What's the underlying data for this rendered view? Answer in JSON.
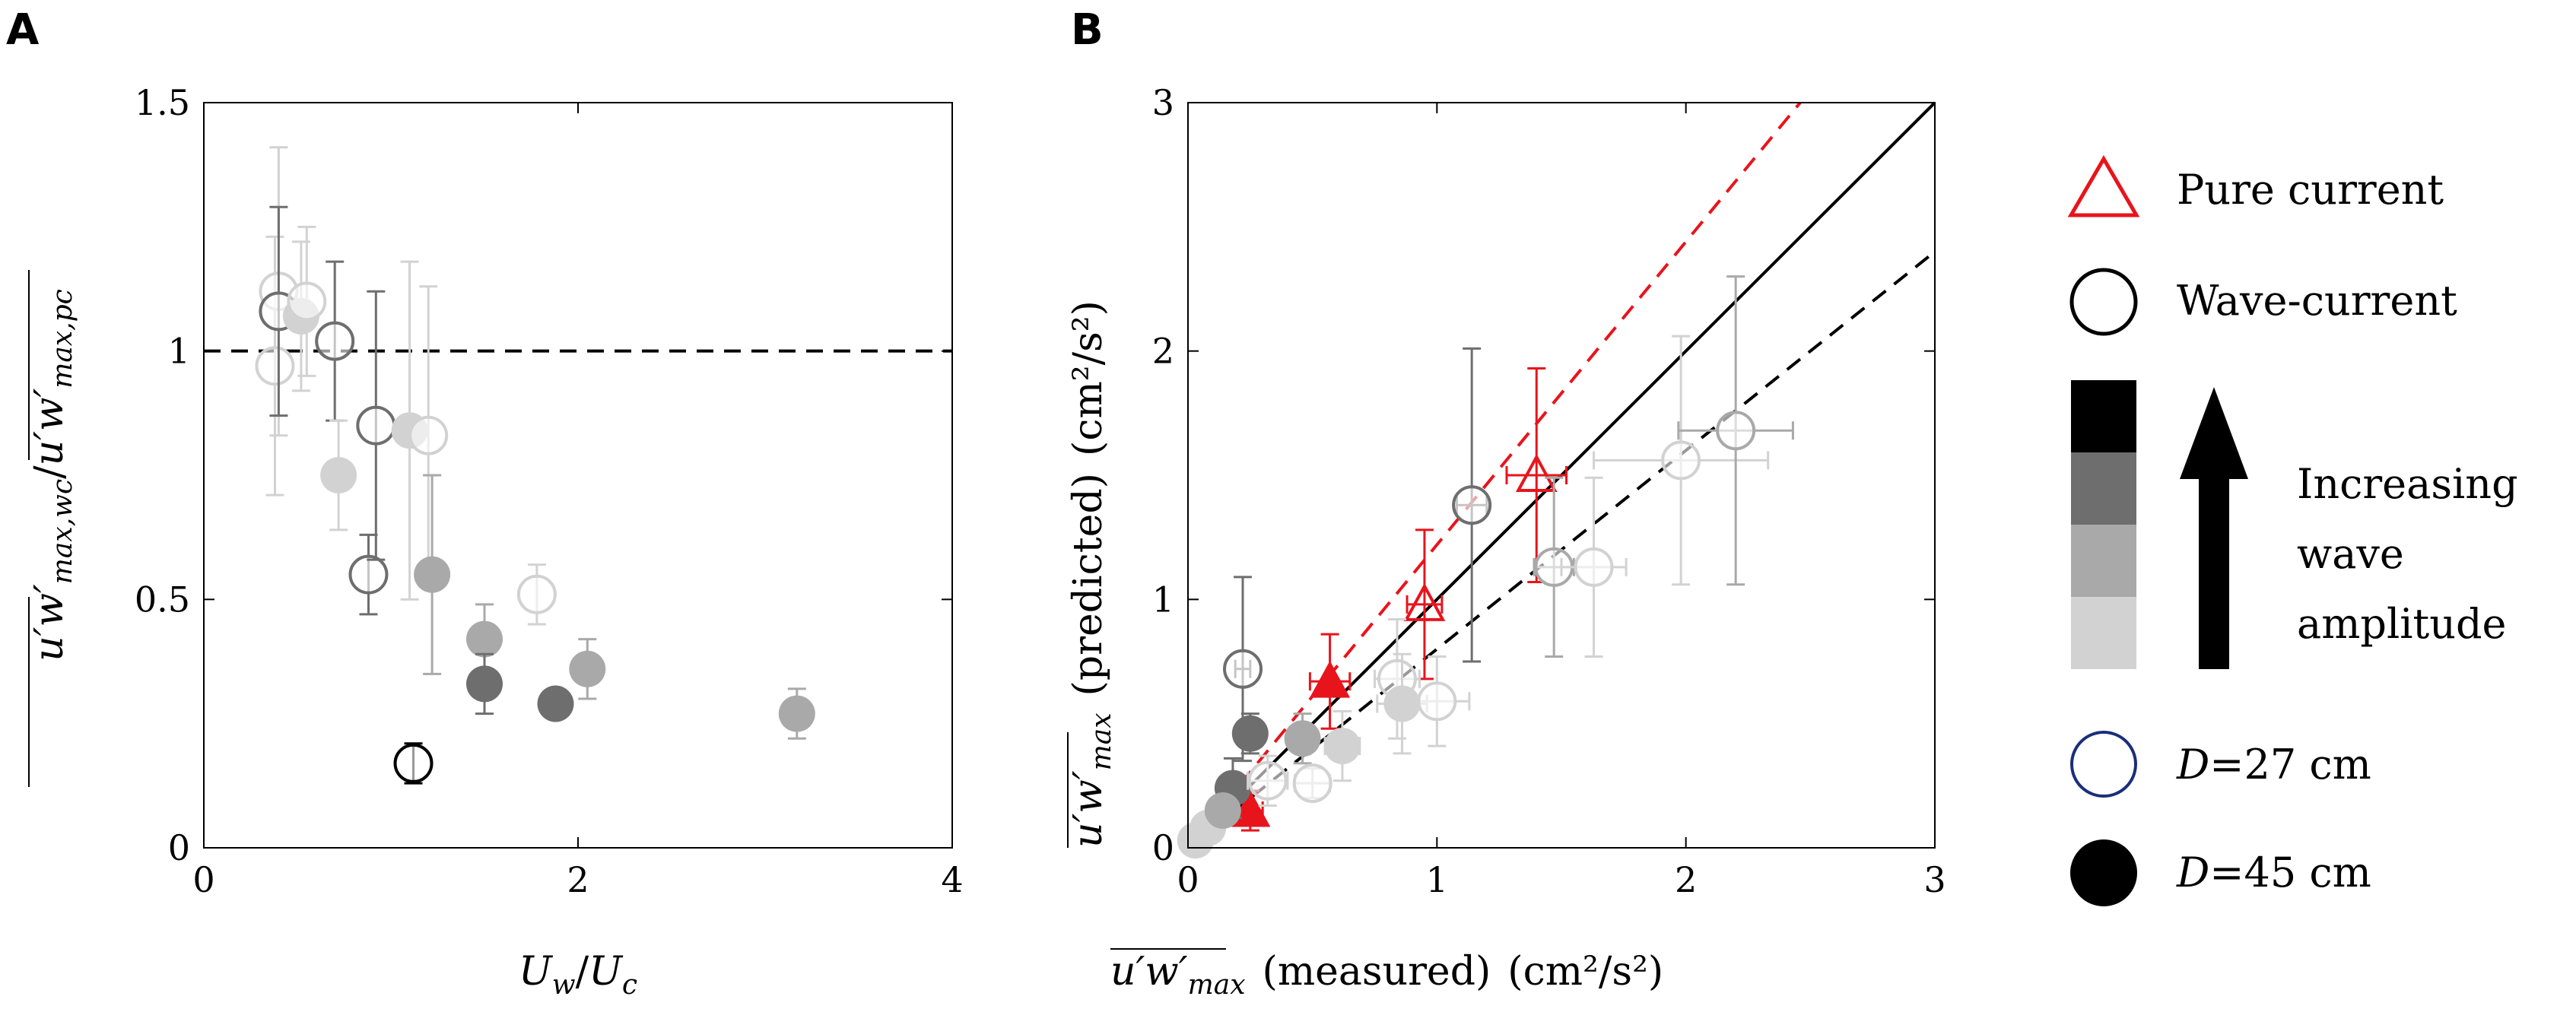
{
  "colors": {
    "pure_current": "#e8141c",
    "black": "#000000",
    "dark": "#6e6e6e",
    "medium": "#a9a9a9",
    "light": "#d2d2d2",
    "legend_blue": "#1a2f7a",
    "refline_dash_red": "#e8141c"
  },
  "chart_data": [
    {
      "panel": "A",
      "type": "scatter",
      "xlabel": "U_w/U_c",
      "xlabel_parts": {
        "a": "U",
        "a_sub": "w",
        "slash": "/",
        "b": "U",
        "b_sub": "c"
      },
      "ylabel": "u'w'_max,wc / u'w'_max,pc",
      "ylabel_parts": {
        "num": "u′w′",
        "num_sub": "max,wc",
        "slash": "/",
        "den": "u′w′",
        "den_sub": "max,pc"
      },
      "xlim": [
        0,
        4
      ],
      "ylim": [
        0,
        1.5
      ],
      "xticks": [
        0,
        2,
        4
      ],
      "xtick_labels": [
        "0",
        "2",
        "4"
      ],
      "yticks": [
        0,
        0.5,
        1,
        1.5
      ],
      "ytick_labels": [
        "0",
        "0.5",
        "1",
        "1.5"
      ],
      "reference_line": {
        "y": 1,
        "style": "dashed"
      },
      "points": [
        {
          "x": 0.38,
          "y": 0.97,
          "err": 0.26,
          "shade": "light",
          "fill": "open"
        },
        {
          "x": 0.4,
          "y": 1.12,
          "err": 0.29,
          "shade": "light",
          "fill": "open"
        },
        {
          "x": 0.4,
          "y": 1.08,
          "err": 0.21,
          "shade": "dark",
          "fill": "open"
        },
        {
          "x": 0.52,
          "y": 1.07,
          "err": 0.15,
          "shade": "light",
          "fill": "filled"
        },
        {
          "x": 0.55,
          "y": 1.1,
          "err": 0.15,
          "shade": "light",
          "fill": "open"
        },
        {
          "x": 0.7,
          "y": 1.02,
          "err": 0.16,
          "shade": "dark",
          "fill": "open"
        },
        {
          "x": 0.72,
          "y": 0.75,
          "err": 0.11,
          "shade": "light",
          "fill": "filled"
        },
        {
          "x": 0.88,
          "y": 0.55,
          "err": 0.08,
          "shade": "dark",
          "fill": "open"
        },
        {
          "x": 0.92,
          "y": 0.85,
          "err": 0.27,
          "shade": "dark",
          "fill": "open"
        },
        {
          "x": 1.1,
          "y": 0.84,
          "err": 0.34,
          "shade": "light",
          "fill": "filled"
        },
        {
          "x": 1.12,
          "y": 0.17,
          "err": 0.04,
          "shade": "black",
          "fill": "open"
        },
        {
          "x": 1.2,
          "y": 0.83,
          "err": 0.3,
          "shade": "light",
          "fill": "open"
        },
        {
          "x": 1.22,
          "y": 0.55,
          "err": 0.2,
          "shade": "medium",
          "fill": "filled"
        },
        {
          "x": 1.5,
          "y": 0.42,
          "err": 0.07,
          "shade": "medium",
          "fill": "filled"
        },
        {
          "x": 1.5,
          "y": 0.33,
          "err": 0.06,
          "shade": "dark",
          "fill": "filled"
        },
        {
          "x": 1.78,
          "y": 0.51,
          "err": 0.06,
          "shade": "light",
          "fill": "open"
        },
        {
          "x": 1.88,
          "y": 0.29,
          "err": 0.02,
          "shade": "dark",
          "fill": "filled"
        },
        {
          "x": 2.05,
          "y": 0.36,
          "err": 0.06,
          "shade": "medium",
          "fill": "filled"
        },
        {
          "x": 3.17,
          "y": 0.27,
          "err": 0.05,
          "shade": "medium",
          "fill": "filled"
        }
      ]
    },
    {
      "panel": "B",
      "type": "scatter",
      "xlabel": "u'w'_max (measured) (cm^2/s^2)",
      "xlabel_parts": {
        "sym": "u′w′",
        "sub": "max",
        "text": "(measured)",
        "unit": "(cm²/s²)"
      },
      "ylabel": "u'w'_max (predicted) (cm^2/s^2)",
      "ylabel_parts": {
        "sym": "u′w′",
        "sub": "max",
        "text": "(predicted)",
        "unit": "(cm²/s²)"
      },
      "xlim": [
        0,
        3
      ],
      "ylim": [
        0,
        3
      ],
      "xticks": [
        0,
        1,
        2,
        3
      ],
      "xtick_labels": [
        "0",
        "1",
        "2",
        "3"
      ],
      "yticks": [
        0,
        1,
        2,
        3
      ],
      "ytick_labels": [
        "0",
        "1",
        "2",
        "3"
      ],
      "reference_lines": [
        {
          "slope": 1.0,
          "color": "black",
          "style": "solid"
        },
        {
          "slope": 1.22,
          "color": "pure_current",
          "style": "dashed"
        },
        {
          "slope": 0.8,
          "color": "black",
          "style": "dashed"
        }
      ],
      "points": [
        {
          "x": 0.25,
          "y": 0.15,
          "xerr": 0.05,
          "yerr": 0.08,
          "shade": "red",
          "marker": "triangle",
          "fill": "filled"
        },
        {
          "x": 0.57,
          "y": 0.67,
          "xerr": 0.08,
          "yerr": 0.19,
          "shade": "red",
          "marker": "triangle",
          "fill": "filled"
        },
        {
          "x": 0.95,
          "y": 0.98,
          "xerr": 0.07,
          "yerr": 0.3,
          "shade": "red",
          "marker": "triangle",
          "fill": "open"
        },
        {
          "x": 1.4,
          "y": 1.5,
          "xerr": 0.12,
          "yerr": 0.43,
          "shade": "red",
          "marker": "triangle",
          "fill": "open"
        },
        {
          "x": 0.22,
          "y": 0.72,
          "xerr": 0.03,
          "yerr": 0.37,
          "shade": "dark",
          "marker": "circle",
          "fill": "open"
        },
        {
          "x": 0.25,
          "y": 0.46,
          "xerr": 0.05,
          "yerr": 0.08,
          "shade": "dark",
          "marker": "circle",
          "fill": "filled"
        },
        {
          "x": 0.18,
          "y": 0.24,
          "xerr": 0.06,
          "yerr": 0.12,
          "shade": "dark",
          "marker": "circle",
          "fill": "filled"
        },
        {
          "x": 0.08,
          "y": 0.08,
          "xerr": 0.04,
          "yerr": 0.05,
          "shade": "light",
          "marker": "circle",
          "fill": "filled"
        },
        {
          "x": 0.14,
          "y": 0.15,
          "xerr": 0.04,
          "yerr": 0.06,
          "shade": "medium",
          "marker": "circle",
          "fill": "filled"
        },
        {
          "x": 0.03,
          "y": 0.03,
          "xerr": 0.02,
          "yerr": 0.02,
          "shade": "light",
          "marker": "circle",
          "fill": "filled"
        },
        {
          "x": 0.32,
          "y": 0.27,
          "xerr": 0.08,
          "yerr": 0.1,
          "shade": "light",
          "marker": "circle",
          "fill": "open"
        },
        {
          "x": 0.46,
          "y": 0.44,
          "xerr": 0.05,
          "yerr": 0.1,
          "shade": "medium",
          "marker": "circle",
          "fill": "filled"
        },
        {
          "x": 0.5,
          "y": 0.26,
          "xerr": 0.07,
          "yerr": 0.06,
          "shade": "light",
          "marker": "circle",
          "fill": "open"
        },
        {
          "x": 0.62,
          "y": 0.41,
          "xerr": 0.07,
          "yerr": 0.14,
          "shade": "light",
          "marker": "circle",
          "fill": "filled"
        },
        {
          "x": 0.84,
          "y": 0.68,
          "xerr": 0.09,
          "yerr": 0.24,
          "shade": "light",
          "marker": "circle",
          "fill": "open"
        },
        {
          "x": 0.86,
          "y": 0.58,
          "xerr": 0.1,
          "yerr": 0.2,
          "shade": "light",
          "marker": "circle",
          "fill": "filled"
        },
        {
          "x": 1.0,
          "y": 0.59,
          "xerr": 0.13,
          "yerr": 0.18,
          "shade": "light",
          "marker": "circle",
          "fill": "open"
        },
        {
          "x": 1.14,
          "y": 1.38,
          "xerr": 0.06,
          "yerr": 0.63,
          "shade": "dark",
          "marker": "circle",
          "fill": "open"
        },
        {
          "x": 1.47,
          "y": 1.13,
          "xerr": 0.08,
          "yerr": 0.36,
          "shade": "medium",
          "marker": "circle",
          "fill": "open"
        },
        {
          "x": 1.63,
          "y": 1.13,
          "xerr": 0.13,
          "yerr": 0.36,
          "shade": "light",
          "marker": "circle",
          "fill": "open"
        },
        {
          "x": 1.98,
          "y": 1.56,
          "xerr": 0.35,
          "yerr": 0.5,
          "shade": "light",
          "marker": "circle",
          "fill": "open"
        },
        {
          "x": 2.2,
          "y": 1.68,
          "xerr": 0.23,
          "yerr": 0.62,
          "shade": "medium",
          "marker": "circle",
          "fill": "open"
        }
      ]
    }
  ],
  "legend": {
    "pure_current": "Pure current",
    "wave_current": "Wave-current",
    "increasing": [
      "Increasing",
      "wave",
      "amplitude"
    ],
    "d27": {
      "sym": "D",
      "text": "=27 cm"
    },
    "d45": {
      "sym": "D",
      "text": "=45 cm"
    },
    "shade_order": [
      "black",
      "dark",
      "medium",
      "light"
    ]
  },
  "panel_labels": [
    "A",
    "B"
  ]
}
